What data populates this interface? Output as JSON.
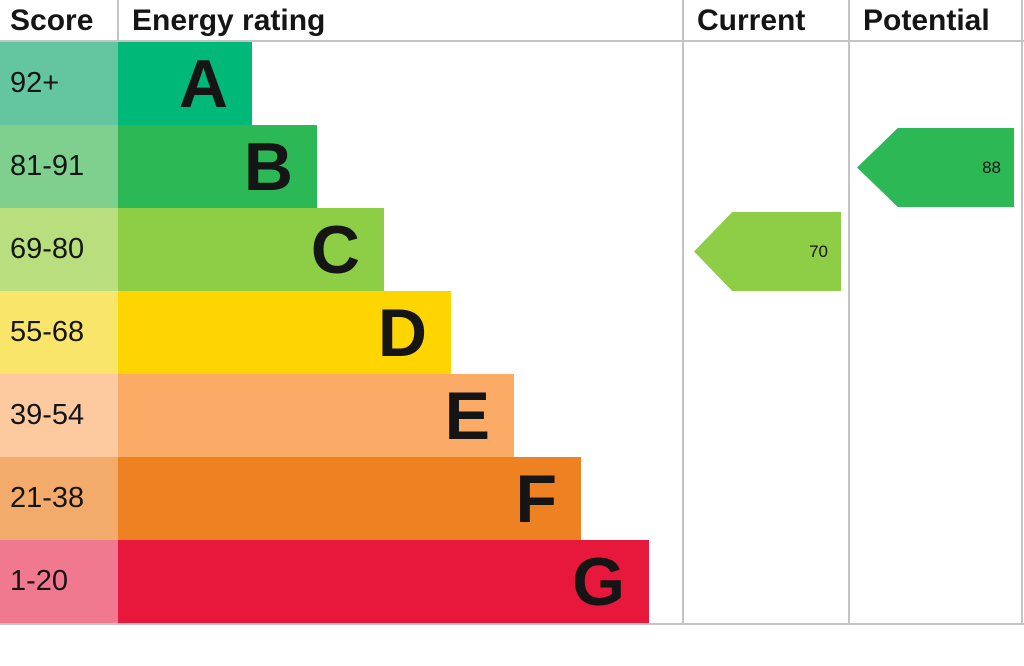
{
  "header": {
    "score": "Score",
    "energy_rating": "Energy rating",
    "current": "Current",
    "potential": "Potential"
  },
  "bands": [
    {
      "score": "92+",
      "letter": "A",
      "bar_color": "#00b878",
      "tint_color": "#63c6a0"
    },
    {
      "score": "81-91",
      "letter": "B",
      "bar_color": "#2cb955",
      "tint_color": "#7fcf8f"
    },
    {
      "score": "69-80",
      "letter": "C",
      "bar_color": "#8dce46",
      "tint_color": "#b8de7e"
    },
    {
      "score": "55-68",
      "letter": "D",
      "bar_color": "#ffd500",
      "tint_color": "#f9e56a"
    },
    {
      "score": "39-54",
      "letter": "E",
      "bar_color": "#fbab66",
      "tint_color": "#fcca9e"
    },
    {
      "score": "21-38",
      "letter": "F",
      "bar_color": "#ee8122",
      "tint_color": "#f3ab6c"
    },
    {
      "score": "1-20",
      "letter": "G",
      "bar_color": "#e8173c",
      "tint_color": "#f1798f"
    }
  ],
  "current": {
    "value": "70",
    "band": "C",
    "color": "#8dce46"
  },
  "potential": {
    "value": "88",
    "band": "B",
    "color": "#2cb955"
  },
  "chart_data": {
    "type": "bar",
    "title": "Energy rating",
    "columns": [
      "Score",
      "Energy rating",
      "Current",
      "Potential"
    ],
    "categories": [
      "A",
      "B",
      "C",
      "D",
      "E",
      "F",
      "G"
    ],
    "score_ranges": [
      "92+",
      "81-91",
      "69-80",
      "55-68",
      "39-54",
      "21-38",
      "1-20"
    ],
    "bar_colors": [
      "#00b878",
      "#2cb955",
      "#8dce46",
      "#ffd500",
      "#fbab66",
      "#ee8122",
      "#e8173c"
    ],
    "markers": {
      "current": {
        "value": 70,
        "band": "C",
        "color": "#8dce46"
      },
      "potential": {
        "value": 88,
        "band": "B",
        "color": "#2cb955"
      }
    },
    "grid": false,
    "legend_position": "none"
  }
}
